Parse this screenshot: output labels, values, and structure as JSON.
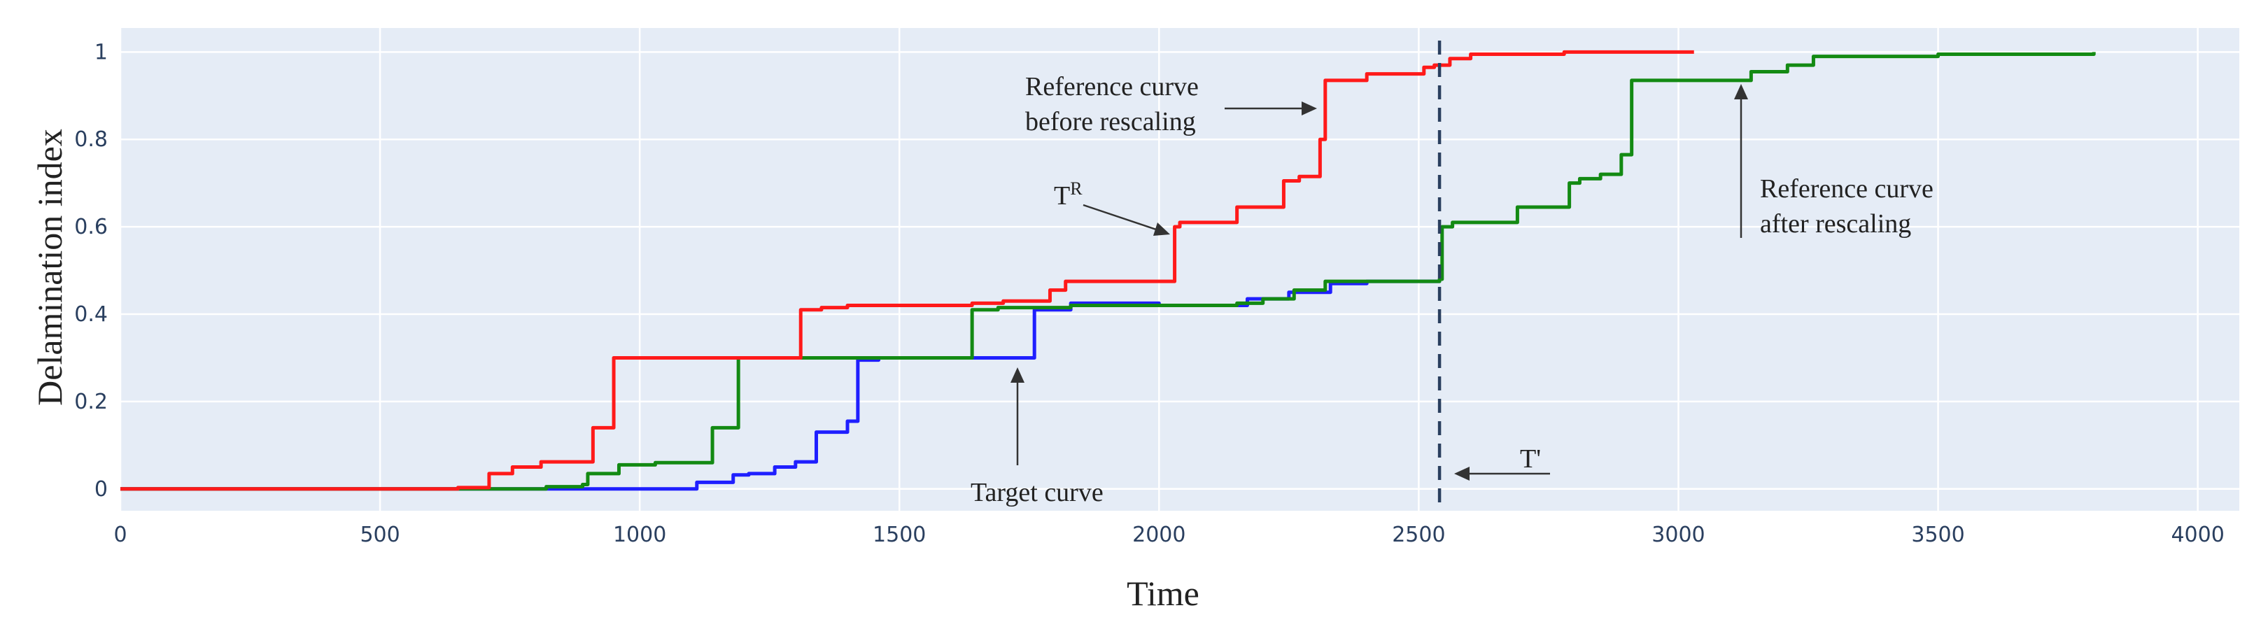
{
  "chart_data": {
    "type": "line",
    "line_shape": "step",
    "title": "",
    "xlabel": "Time",
    "ylabel": "Delamination index",
    "xlim": [
      0,
      4080
    ],
    "ylim": [
      -0.05,
      1.055
    ],
    "xticks": [
      0,
      500,
      1000,
      1500,
      2000,
      2500,
      3000,
      3500,
      4000
    ],
    "yticks": [
      0,
      0.2,
      0.4,
      0.6,
      0.8,
      1
    ],
    "xtick_labels": [
      "0",
      "500",
      "1000",
      "1500",
      "2000",
      "2500",
      "3000",
      "3500",
      "4000"
    ],
    "ytick_labels": [
      "0",
      "0.2",
      "0.4",
      "0.6",
      "0.8",
      "1"
    ],
    "grid": true,
    "plot_background": "#e5ecf6",
    "series": [
      {
        "name": "Reference curve before rescaling",
        "color": "#ff1a1a",
        "x": [
          0,
          650,
          710,
          755,
          810,
          910,
          950,
          1310,
          1350,
          1400,
          1640,
          1700,
          1790,
          1820,
          2030,
          2040,
          2150,
          2240,
          2270,
          2310,
          2320,
          2400,
          2510,
          2530,
          2560,
          2600,
          2780,
          3030
        ],
        "y": [
          0,
          0.003,
          0.035,
          0.05,
          0.062,
          0.14,
          0.3,
          0.41,
          0.415,
          0.42,
          0.425,
          0.43,
          0.455,
          0.475,
          0.6,
          0.61,
          0.645,
          0.705,
          0.715,
          0.8,
          0.935,
          0.95,
          0.965,
          0.97,
          0.985,
          0.995,
          1.0,
          1.0
        ]
      },
      {
        "name": "Reference curve after rescaling",
        "color": "#138a13",
        "x": [
          0,
          820,
          890,
          900,
          960,
          1030,
          1140,
          1190,
          1640,
          1690,
          1830,
          2150,
          2200,
          2260,
          2320,
          2540,
          2545,
          2565,
          2690,
          2790,
          2810,
          2850,
          2890,
          2910,
          3140,
          3210,
          3260,
          3500,
          3800
        ],
        "y": [
          0,
          0.005,
          0.01,
          0.035,
          0.055,
          0.06,
          0.14,
          0.3,
          0.41,
          0.415,
          0.42,
          0.425,
          0.435,
          0.455,
          0.475,
          0.48,
          0.6,
          0.61,
          0.645,
          0.7,
          0.71,
          0.72,
          0.765,
          0.935,
          0.955,
          0.97,
          0.99,
          0.995,
          1.0
        ]
      },
      {
        "name": "Target curve",
        "color": "#1f1fff",
        "x": [
          0,
          1110,
          1180,
          1210,
          1260,
          1300,
          1340,
          1400,
          1420,
          1460,
          1740,
          1760,
          1830,
          2000,
          2170,
          2250,
          2330,
          2400,
          2540
        ],
        "y": [
          0,
          0.015,
          0.032,
          0.035,
          0.05,
          0.062,
          0.13,
          0.155,
          0.295,
          0.3,
          0.3,
          0.41,
          0.425,
          0.42,
          0.435,
          0.45,
          0.47,
          0.475,
          0.48
        ]
      }
    ],
    "vlines": [
      {
        "x": 2540,
        "style": "dashed",
        "color": "#2a3f5f"
      }
    ],
    "annotations": [
      {
        "key": "before",
        "lines": [
          "Reference curve",
          "before rescaling"
        ],
        "x": 2320,
        "y": 0.88,
        "arrow": "right",
        "points_to": "red curve"
      },
      {
        "key": "tr",
        "text": "T",
        "sup": "R",
        "x": 2020,
        "y": 0.6,
        "arrow": "down-right",
        "points_to": "red curve jump"
      },
      {
        "key": "after",
        "lines": [
          "Reference curve",
          "after rescaling"
        ],
        "x": 3120,
        "y": 0.93,
        "arrow": "up",
        "points_to": "green curve"
      },
      {
        "key": "target",
        "text": "Target curve",
        "x": 1730,
        "y": 0.305,
        "arrow": "up",
        "points_to": "blue curve"
      },
      {
        "key": "tprime",
        "text": "T'",
        "x": 2550,
        "y": 0.07,
        "arrow": "left",
        "points_to": "dashed line"
      }
    ]
  }
}
